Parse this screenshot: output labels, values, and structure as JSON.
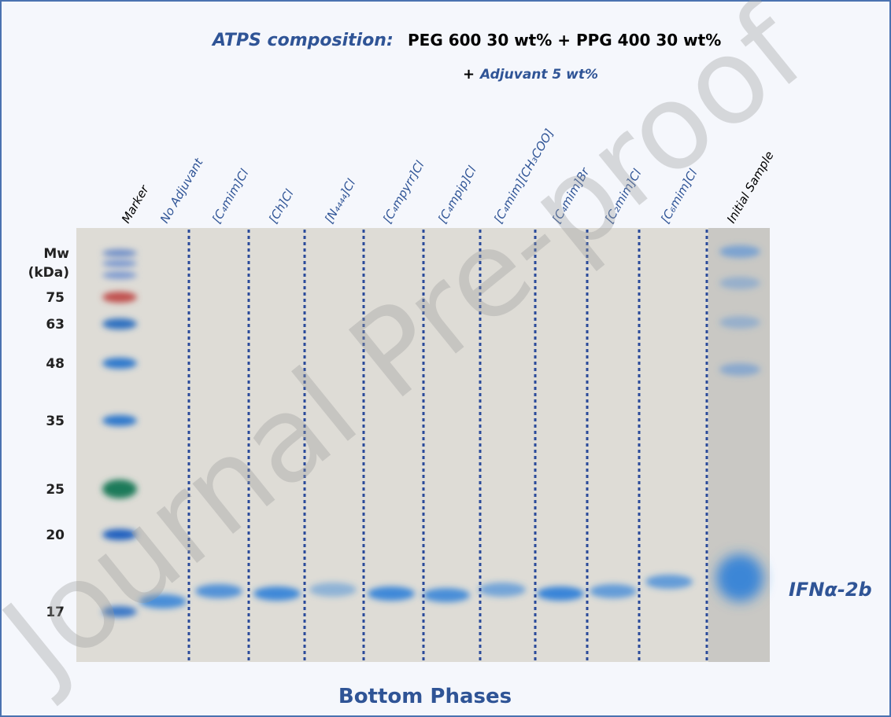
{
  "figure": {
    "title": {
      "label": "ATPS composition:",
      "main": "PEG 600 30 wt% + PPG 400 30 wt%",
      "plus": "+",
      "adjuvant": "Adjuvant 5 wt%"
    },
    "lanes": [
      "Marker",
      "No Adjuvant",
      "[C₄mim]Cl",
      "[Ch]Cl",
      "[N₄₄₄₄]Cl",
      "[C₄mpyrr]Cl",
      "[C₄mpip]Cl",
      "[C₄mim][CH₃COO]",
      "[C₄mim]Br",
      "[C₂mim]Cl",
      "[C₆mim]Cl",
      "Initial Sample"
    ],
    "mw": {
      "title": [
        "Mw",
        "(kDa)"
      ],
      "values": [
        75,
        63,
        48,
        35,
        25,
        20,
        17
      ]
    },
    "band_label": "IFNα-2b",
    "caption": "Bottom Phases",
    "watermark": "Journal Pre-proof"
  }
}
